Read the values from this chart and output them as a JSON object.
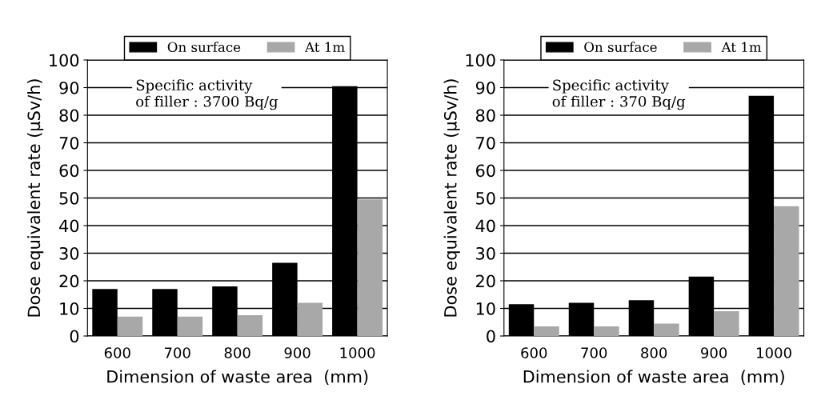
{
  "chart_data": [
    {
      "type": "bar",
      "xlabel": "Dimension of waste area  (mm)",
      "ylabel": "Dose equivalent rate (μSv/h)",
      "categories": [
        "600",
        "700",
        "800",
        "900",
        "1000"
      ],
      "series": [
        {
          "name": "On surface",
          "color": "#000000",
          "values": [
            17,
            17,
            18,
            26.5,
            90.5
          ]
        },
        {
          "name": "At 1m",
          "color": "#a8a8a8",
          "values": [
            7,
            7,
            7.5,
            12,
            49.5
          ]
        }
      ],
      "ylim": [
        0,
        100
      ],
      "yticks": [
        0,
        10,
        20,
        30,
        40,
        50,
        60,
        70,
        80,
        90,
        100
      ],
      "grid": "y",
      "legend": "top",
      "annotations": [
        "Specific activity\nof filler : 3700 Bq/g"
      ]
    },
    {
      "type": "bar",
      "xlabel": "Dimension of waste area  (mm)",
      "ylabel": "Dose equivalent rate (μSv/h)",
      "categories": [
        "600",
        "700",
        "800",
        "900",
        "1000"
      ],
      "series": [
        {
          "name": "On surface",
          "color": "#000000",
          "values": [
            11.5,
            12,
            13,
            21.5,
            87
          ]
        },
        {
          "name": "At 1m",
          "color": "#a8a8a8",
          "values": [
            3.5,
            3.5,
            4.5,
            9,
            47
          ]
        }
      ],
      "ylim": [
        0,
        100
      ],
      "yticks": [
        0,
        10,
        20,
        30,
        40,
        50,
        60,
        70,
        80,
        90,
        100
      ],
      "grid": "y",
      "legend": "top",
      "annotations": [
        "Specific activity\nof filler : 370 Bq/g"
      ]
    }
  ]
}
